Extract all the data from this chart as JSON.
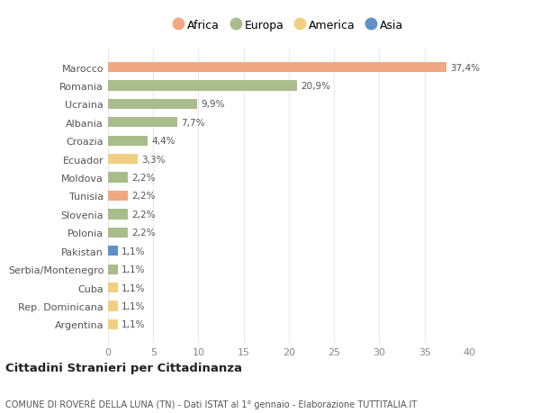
{
  "countries": [
    "Marocco",
    "Romania",
    "Ucraina",
    "Albania",
    "Croazia",
    "Ecuador",
    "Moldova",
    "Tunisia",
    "Slovenia",
    "Polonia",
    "Pakistan",
    "Serbia/Montenegro",
    "Cuba",
    "Rep. Dominicana",
    "Argentina"
  ],
  "values": [
    37.4,
    20.9,
    9.9,
    7.7,
    4.4,
    3.3,
    2.2,
    2.2,
    2.2,
    2.2,
    1.1,
    1.1,
    1.1,
    1.1,
    1.1
  ],
  "labels": [
    "37,4%",
    "20,9%",
    "9,9%",
    "7,7%",
    "4,4%",
    "3,3%",
    "2,2%",
    "2,2%",
    "2,2%",
    "2,2%",
    "1,1%",
    "1,1%",
    "1,1%",
    "1,1%",
    "1,1%"
  ],
  "continents": [
    "Africa",
    "Europa",
    "Europa",
    "Europa",
    "Europa",
    "America",
    "Europa",
    "Africa",
    "Europa",
    "Europa",
    "Asia",
    "Europa",
    "America",
    "America",
    "America"
  ],
  "colors": {
    "Africa": "#F0A882",
    "Europa": "#A8BC8C",
    "America": "#F0D080",
    "Asia": "#6090C8"
  },
  "legend_order": [
    "Africa",
    "Europa",
    "America",
    "Asia"
  ],
  "title": "Cittadini Stranieri per Cittadinanza",
  "subtitle": "COMUNE DI ROVERÈ DELLA LUNA (TN) - Dati ISTAT al 1° gennaio - Elaborazione TUTTITALIA.IT",
  "xlim": [
    0,
    40
  ],
  "xticks": [
    0,
    5,
    10,
    15,
    20,
    25,
    30,
    35,
    40
  ],
  "bg_color": "#ffffff",
  "grid_color": "#e8e8e8"
}
